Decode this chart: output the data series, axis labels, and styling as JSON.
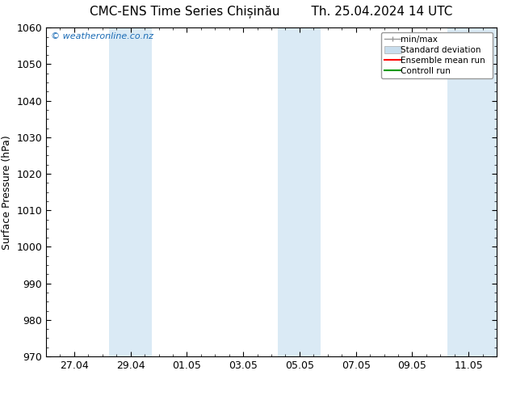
{
  "title_left": "CMC-ENS Time Series Chișinău",
  "title_right": "Th. 25.04.2024 14 UTC",
  "ylabel": "Surface Pressure (hPa)",
  "ylim": [
    970,
    1060
  ],
  "yticks": [
    970,
    980,
    990,
    1000,
    1010,
    1020,
    1030,
    1040,
    1050,
    1060
  ],
  "xtick_labels": [
    "27.04",
    "29.04",
    "01.05",
    "03.05",
    "05.05",
    "07.05",
    "09.05",
    "11.05"
  ],
  "x_values": [
    0,
    1,
    2,
    3,
    4,
    5,
    6,
    7
  ],
  "xlim": [
    -0.5,
    7.5
  ],
  "bg_color": "#ffffff",
  "plot_bg_color": "#ffffff",
  "shaded_bands": [
    {
      "x_start": 0.62,
      "x_end": 1.38
    },
    {
      "x_start": 3.62,
      "x_end": 4.38
    },
    {
      "x_start": 6.62,
      "x_end": 7.5
    }
  ],
  "shaded_color": "#daeaf5",
  "watermark": "© weatheronline.co.nz",
  "watermark_color": "#1a6bb5",
  "legend_items": [
    {
      "label": "min/max",
      "color": "#aaaaaa",
      "style": "errorbar"
    },
    {
      "label": "Standard deviation",
      "color": "#c8dded",
      "style": "box"
    },
    {
      "label": "Ensemble mean run",
      "color": "#ff0000",
      "style": "line"
    },
    {
      "label": "Controll run",
      "color": "#009900",
      "style": "line"
    }
  ],
  "title_fontsize": 11,
  "axis_fontsize": 9,
  "tick_fontsize": 9,
  "watermark_fontsize": 8
}
